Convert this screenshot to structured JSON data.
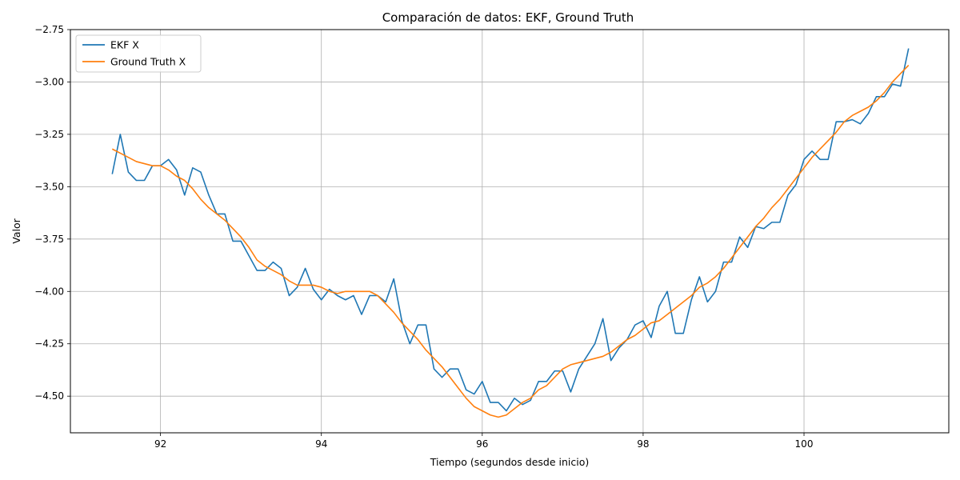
{
  "chart_data": {
    "type": "line",
    "title": "Comparación de datos: EKF, Ground Truth",
    "xlabel": "Tiempo (segundos desde inicio)",
    "ylabel": "Valor",
    "xlim": [
      90.88,
      101.8
    ],
    "ylim": [
      -4.675,
      -2.75
    ],
    "x_ticks": [
      92,
      94,
      96,
      98,
      100
    ],
    "x_tick_labels": [
      "92",
      "94",
      "96",
      "98",
      "100"
    ],
    "y_ticks": [
      -2.75,
      -3.0,
      -3.25,
      -3.5,
      -3.75,
      -4.0,
      -4.25,
      -4.5
    ],
    "y_tick_labels": [
      "−2.75",
      "−3.00",
      "−3.25",
      "−3.50",
      "−3.75",
      "−4.00",
      "−4.25",
      "−4.50"
    ],
    "grid": true,
    "legend_position": "top-left",
    "series": [
      {
        "name": "EKF X",
        "color": "#1f77b4",
        "points": [
          [
            91.4,
            -3.44
          ],
          [
            91.5,
            -3.25
          ],
          [
            91.6,
            -3.43
          ],
          [
            91.7,
            -3.47
          ],
          [
            91.8,
            -3.47
          ],
          [
            91.9,
            -3.4
          ],
          [
            92.0,
            -3.4
          ],
          [
            92.1,
            -3.37
          ],
          [
            92.2,
            -3.42
          ],
          [
            92.3,
            -3.54
          ],
          [
            92.4,
            -3.41
          ],
          [
            92.5,
            -3.43
          ],
          [
            92.6,
            -3.54
          ],
          [
            92.7,
            -3.63
          ],
          [
            92.8,
            -3.63
          ],
          [
            92.9,
            -3.76
          ],
          [
            93.0,
            -3.76
          ],
          [
            93.1,
            -3.83
          ],
          [
            93.2,
            -3.9
          ],
          [
            93.3,
            -3.9
          ],
          [
            93.4,
            -3.86
          ],
          [
            93.5,
            -3.89
          ],
          [
            93.6,
            -4.02
          ],
          [
            93.7,
            -3.98
          ],
          [
            93.8,
            -3.89
          ],
          [
            93.9,
            -3.99
          ],
          [
            94.0,
            -4.04
          ],
          [
            94.1,
            -3.99
          ],
          [
            94.2,
            -4.02
          ],
          [
            94.3,
            -4.04
          ],
          [
            94.4,
            -4.02
          ],
          [
            94.5,
            -4.11
          ],
          [
            94.6,
            -4.02
          ],
          [
            94.7,
            -4.02
          ],
          [
            94.8,
            -4.05
          ],
          [
            94.9,
            -3.94
          ],
          [
            95.0,
            -4.14
          ],
          [
            95.1,
            -4.25
          ],
          [
            95.2,
            -4.16
          ],
          [
            95.3,
            -4.16
          ],
          [
            95.4,
            -4.37
          ],
          [
            95.5,
            -4.41
          ],
          [
            95.6,
            -4.37
          ],
          [
            95.7,
            -4.37
          ],
          [
            95.8,
            -4.47
          ],
          [
            95.9,
            -4.49
          ],
          [
            96.0,
            -4.43
          ],
          [
            96.1,
            -4.53
          ],
          [
            96.2,
            -4.53
          ],
          [
            96.3,
            -4.57
          ],
          [
            96.4,
            -4.51
          ],
          [
            96.5,
            -4.54
          ],
          [
            96.6,
            -4.52
          ],
          [
            96.7,
            -4.43
          ],
          [
            96.8,
            -4.43
          ],
          [
            96.9,
            -4.38
          ],
          [
            97.0,
            -4.38
          ],
          [
            97.1,
            -4.48
          ],
          [
            97.2,
            -4.37
          ],
          [
            97.3,
            -4.31
          ],
          [
            97.4,
            -4.25
          ],
          [
            97.5,
            -4.13
          ],
          [
            97.6,
            -4.33
          ],
          [
            97.7,
            -4.27
          ],
          [
            97.8,
            -4.23
          ],
          [
            97.9,
            -4.16
          ],
          [
            98.0,
            -4.14
          ],
          [
            98.1,
            -4.22
          ],
          [
            98.2,
            -4.07
          ],
          [
            98.3,
            -4.0
          ],
          [
            98.4,
            -4.2
          ],
          [
            98.5,
            -4.2
          ],
          [
            98.6,
            -4.04
          ],
          [
            98.7,
            -3.93
          ],
          [
            98.8,
            -4.05
          ],
          [
            98.9,
            -4.0
          ],
          [
            99.0,
            -3.86
          ],
          [
            99.1,
            -3.86
          ],
          [
            99.2,
            -3.74
          ],
          [
            99.3,
            -3.79
          ],
          [
            99.4,
            -3.69
          ],
          [
            99.5,
            -3.7
          ],
          [
            99.6,
            -3.67
          ],
          [
            99.7,
            -3.67
          ],
          [
            99.8,
            -3.54
          ],
          [
            99.9,
            -3.49
          ],
          [
            100.0,
            -3.37
          ],
          [
            100.1,
            -3.33
          ],
          [
            100.2,
            -3.37
          ],
          [
            100.3,
            -3.37
          ],
          [
            100.4,
            -3.19
          ],
          [
            100.5,
            -3.19
          ],
          [
            100.6,
            -3.18
          ],
          [
            100.7,
            -3.2
          ],
          [
            100.8,
            -3.15
          ],
          [
            100.9,
            -3.07
          ],
          [
            101.0,
            -3.07
          ],
          [
            101.1,
            -3.01
          ],
          [
            101.2,
            -3.02
          ],
          [
            101.3,
            -2.84
          ]
        ]
      },
      {
        "name": "Ground Truth X",
        "color": "#ff7f0e",
        "points": [
          [
            91.4,
            -3.32
          ],
          [
            91.5,
            -3.34
          ],
          [
            91.6,
            -3.36
          ],
          [
            91.7,
            -3.38
          ],
          [
            91.8,
            -3.39
          ],
          [
            91.9,
            -3.4
          ],
          [
            92.0,
            -3.4
          ],
          [
            92.1,
            -3.42
          ],
          [
            92.2,
            -3.45
          ],
          [
            92.3,
            -3.47
          ],
          [
            92.4,
            -3.51
          ],
          [
            92.5,
            -3.56
          ],
          [
            92.6,
            -3.6
          ],
          [
            92.7,
            -3.63
          ],
          [
            92.8,
            -3.66
          ],
          [
            92.9,
            -3.7
          ],
          [
            93.0,
            -3.74
          ],
          [
            93.1,
            -3.79
          ],
          [
            93.2,
            -3.85
          ],
          [
            93.3,
            -3.88
          ],
          [
            93.4,
            -3.9
          ],
          [
            93.5,
            -3.92
          ],
          [
            93.6,
            -3.95
          ],
          [
            93.7,
            -3.97
          ],
          [
            93.8,
            -3.97
          ],
          [
            93.9,
            -3.97
          ],
          [
            94.0,
            -3.98
          ],
          [
            94.1,
            -4.0
          ],
          [
            94.2,
            -4.01
          ],
          [
            94.3,
            -4.0
          ],
          [
            94.4,
            -4.0
          ],
          [
            94.5,
            -4.0
          ],
          [
            94.6,
            -4.0
          ],
          [
            94.7,
            -4.02
          ],
          [
            94.8,
            -4.06
          ],
          [
            94.9,
            -4.1
          ],
          [
            95.0,
            -4.15
          ],
          [
            95.1,
            -4.19
          ],
          [
            95.2,
            -4.23
          ],
          [
            95.3,
            -4.28
          ],
          [
            95.4,
            -4.32
          ],
          [
            95.5,
            -4.36
          ],
          [
            95.6,
            -4.41
          ],
          [
            95.7,
            -4.46
          ],
          [
            95.8,
            -4.51
          ],
          [
            95.9,
            -4.55
          ],
          [
            96.0,
            -4.57
          ],
          [
            96.1,
            -4.59
          ],
          [
            96.2,
            -4.6
          ],
          [
            96.3,
            -4.59
          ],
          [
            96.4,
            -4.56
          ],
          [
            96.5,
            -4.53
          ],
          [
            96.6,
            -4.51
          ],
          [
            96.7,
            -4.47
          ],
          [
            96.8,
            -4.45
          ],
          [
            96.9,
            -4.41
          ],
          [
            97.0,
            -4.37
          ],
          [
            97.1,
            -4.35
          ],
          [
            97.2,
            -4.34
          ],
          [
            97.3,
            -4.33
          ],
          [
            97.4,
            -4.32
          ],
          [
            97.5,
            -4.31
          ],
          [
            97.6,
            -4.29
          ],
          [
            97.7,
            -4.26
          ],
          [
            97.8,
            -4.23
          ],
          [
            97.9,
            -4.21
          ],
          [
            98.0,
            -4.18
          ],
          [
            98.1,
            -4.15
          ],
          [
            98.2,
            -4.14
          ],
          [
            98.3,
            -4.11
          ],
          [
            98.4,
            -4.08
          ],
          [
            98.5,
            -4.05
          ],
          [
            98.6,
            -4.02
          ],
          [
            98.7,
            -3.98
          ],
          [
            98.8,
            -3.96
          ],
          [
            98.9,
            -3.93
          ],
          [
            99.0,
            -3.89
          ],
          [
            99.1,
            -3.84
          ],
          [
            99.2,
            -3.79
          ],
          [
            99.3,
            -3.74
          ],
          [
            99.4,
            -3.69
          ],
          [
            99.5,
            -3.65
          ],
          [
            99.6,
            -3.6
          ],
          [
            99.7,
            -3.56
          ],
          [
            99.8,
            -3.51
          ],
          [
            99.9,
            -3.46
          ],
          [
            100.0,
            -3.41
          ],
          [
            100.1,
            -3.36
          ],
          [
            100.2,
            -3.32
          ],
          [
            100.3,
            -3.28
          ],
          [
            100.4,
            -3.24
          ],
          [
            100.5,
            -3.19
          ],
          [
            100.6,
            -3.16
          ],
          [
            100.7,
            -3.14
          ],
          [
            100.8,
            -3.12
          ],
          [
            100.9,
            -3.09
          ],
          [
            101.0,
            -3.05
          ],
          [
            101.1,
            -3.0
          ],
          [
            101.2,
            -2.96
          ],
          [
            101.3,
            -2.92
          ]
        ]
      }
    ]
  }
}
